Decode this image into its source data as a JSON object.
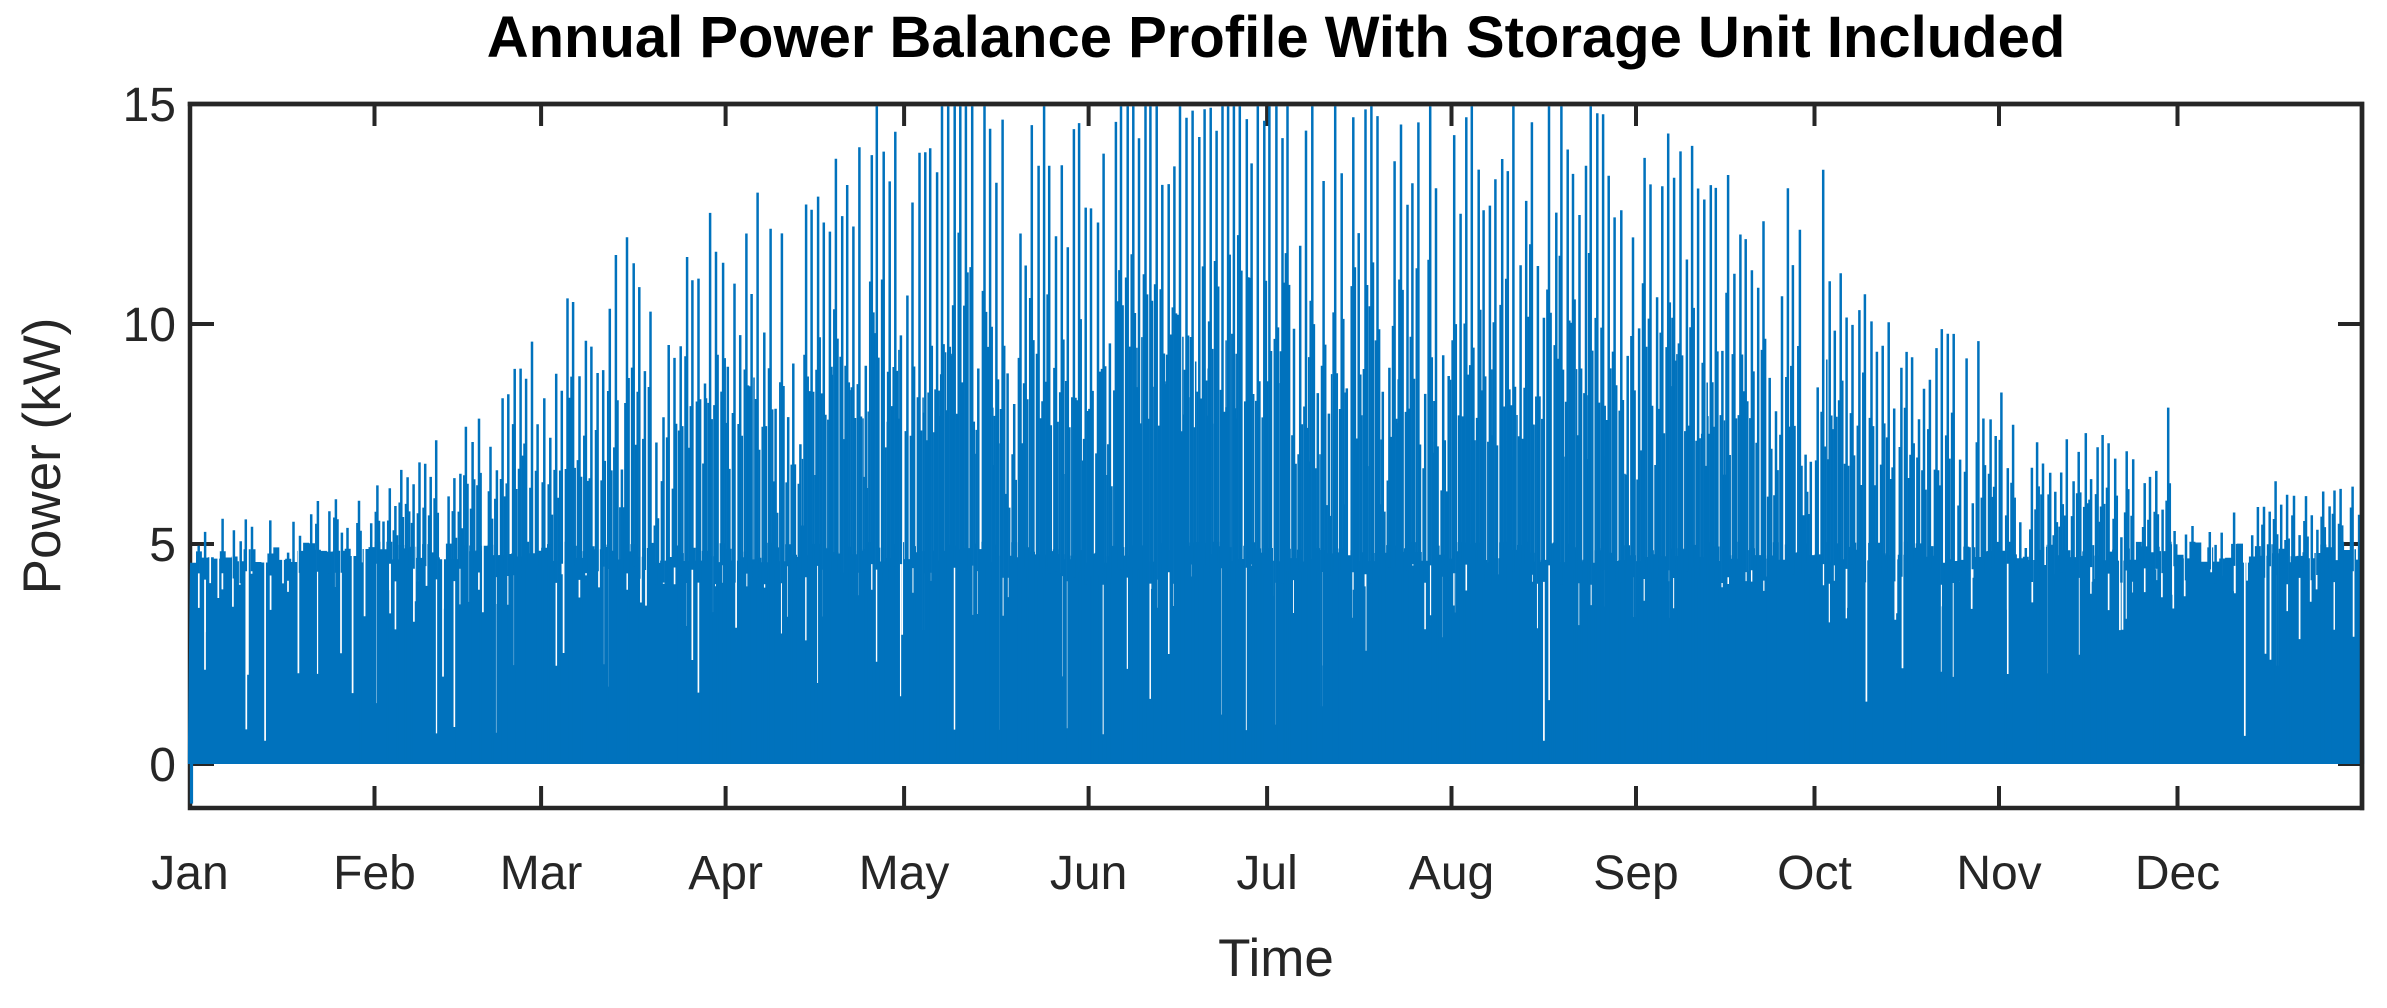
{
  "figure": {
    "background": "#ffffff"
  },
  "chart_data": {
    "type": "line",
    "title": "Annual Power Balance Profile With Storage Unit Included",
    "xlabel": "Time",
    "ylabel": "Power (kW)",
    "x_unit": "day_of_year",
    "x_range_days": [
      0,
      365
    ],
    "ylim": [
      -1,
      15
    ],
    "grid": false,
    "legend": "none",
    "box": true,
    "tick_direction": "in",
    "x_tick_labels": [
      "Jan",
      "Feb",
      "Mar",
      "Apr",
      "May",
      "Jun",
      "Jul",
      "Aug",
      "Sep",
      "Oct",
      "Nov",
      "Dec"
    ],
    "x_tick_days": [
      0,
      31,
      59,
      90,
      120,
      151,
      181,
      212,
      243,
      273,
      304,
      334
    ],
    "y_ticks": [
      0,
      5,
      10,
      15
    ],
    "y_tick_labels": [
      "0",
      "5",
      "10",
      "15"
    ],
    "line_color": "#0072BD",
    "axis_color": "#262626",
    "title_color": "#000000",
    "series_description": "Dense hourly net power balance over one year: a solid oscillating base band between 0 and ~5 kW all year (with narrow white dips), plus daily generation peak spikes whose seasonal envelope rises from ~5 kW in January to ~15 kW (clipped at axis top) in May-July, then falls back to ~5-6 kW in December. First sample dips to about -0.9 kW at Jan 1.",
    "baseline_band": {
      "min_kw": 0,
      "top_mean_kw": 4.82,
      "top_jitter_kw": 0.25,
      "notch_depth_typical_kw": [
        0.4,
        3.5
      ]
    },
    "daily_peak_envelope": [
      [
        0,
        5.0
      ],
      [
        18,
        5.0
      ],
      [
        22,
        5.5
      ],
      [
        26,
        5.3
      ],
      [
        31,
        5.9
      ],
      [
        34,
        6.3
      ],
      [
        38,
        6.4
      ],
      [
        41,
        7.4
      ],
      [
        44,
        6.5
      ],
      [
        48,
        7.8
      ],
      [
        51,
        7.1
      ],
      [
        54,
        8.9
      ],
      [
        57,
        8.7
      ],
      [
        60,
        7.8
      ],
      [
        63,
        9.6
      ],
      [
        67,
        9.0
      ],
      [
        70,
        10.2
      ],
      [
        73,
        10.9
      ],
      [
        76,
        9.3
      ],
      [
        80,
        10.1
      ],
      [
        84,
        11.0
      ],
      [
        87,
        11.6
      ],
      [
        90,
        10.0
      ],
      [
        93,
        11.3
      ],
      [
        96,
        12.2
      ],
      [
        100,
        11.2
      ],
      [
        104,
        12.0
      ],
      [
        108,
        13.2
      ],
      [
        112,
        13.5
      ],
      [
        116,
        14.1
      ],
      [
        120,
        14.4
      ],
      [
        124,
        14.7
      ],
      [
        127,
        15.0
      ],
      [
        131,
        14.6
      ],
      [
        135,
        14.3
      ],
      [
        139,
        13.7
      ],
      [
        143,
        14.6
      ],
      [
        146,
        12.8
      ],
      [
        150,
        13.6
      ],
      [
        154,
        14.3
      ],
      [
        158,
        14.9
      ],
      [
        162,
        15.0
      ],
      [
        166,
        14.6
      ],
      [
        170,
        14.9
      ],
      [
        174,
        15.0
      ],
      [
        178,
        14.9
      ],
      [
        182,
        15.0
      ],
      [
        186,
        14.5
      ],
      [
        190,
        13.9
      ],
      [
        194,
        13.4
      ],
      [
        198,
        13.5
      ],
      [
        202,
        14.0
      ],
      [
        206,
        13.5
      ],
      [
        210,
        13.7
      ],
      [
        214,
        14.0
      ],
      [
        218,
        14.1
      ],
      [
        222,
        14.4
      ],
      [
        226,
        14.6
      ],
      [
        230,
        14.1
      ],
      [
        234,
        13.4
      ],
      [
        238,
        13.7
      ],
      [
        242,
        13.2
      ],
      [
        246,
        13.3
      ],
      [
        250,
        13.0
      ],
      [
        254,
        13.1
      ],
      [
        258,
        12.7
      ],
      [
        262,
        12.1
      ],
      [
        266,
        11.4
      ],
      [
        270,
        12.0
      ],
      [
        274,
        12.1
      ],
      [
        277,
        10.5
      ],
      [
        281,
        9.8
      ],
      [
        285,
        9.1
      ],
      [
        288,
        8.8
      ],
      [
        291,
        8.4
      ],
      [
        294,
        9.6
      ],
      [
        297,
        9.7
      ],
      [
        300,
        8.8
      ],
      [
        303,
        7.9
      ],
      [
        306,
        7.2
      ],
      [
        310,
        7.0
      ],
      [
        314,
        6.9
      ],
      [
        318,
        7.1
      ],
      [
        322,
        6.6
      ],
      [
        326,
        6.3
      ],
      [
        330,
        6.3
      ],
      [
        333,
        5.6
      ],
      [
        336,
        5.2
      ],
      [
        340,
        5.1
      ],
      [
        344,
        5.3
      ],
      [
        347,
        5.7
      ],
      [
        350,
        5.9
      ],
      [
        353,
        5.7
      ],
      [
        356,
        5.5
      ],
      [
        359,
        5.7
      ],
      [
        362,
        6.0
      ],
      [
        364,
        5.9
      ]
    ],
    "special_spikes": [
      {
        "day": 332,
        "kW": 8.1
      }
    ],
    "start_dip": {
      "day": 0,
      "kW": -0.9
    },
    "render": {
      "seed": 7,
      "cloudy_prob": 0.18,
      "main_spike_width": 2.5,
      "shoulder_spike_width": 1.9,
      "tertiary_spike_width": 1.5,
      "notch_width": 1.7,
      "notch_color": "#ffffff"
    }
  }
}
